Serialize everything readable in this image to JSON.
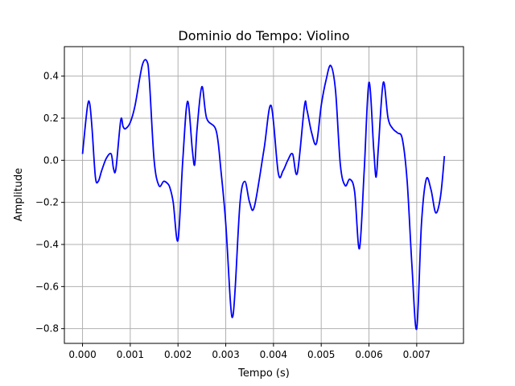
{
  "chart_data": {
    "type": "line",
    "title": "Dominio do Tempo: Violino",
    "xlabel": "Tempo (s)",
    "ylabel": "Amplitude",
    "xlim": [
      -0.00038,
      0.00798
    ],
    "ylim": [
      -0.87,
      0.54
    ],
    "xticks": [
      0.0,
      0.001,
      0.002,
      0.003,
      0.004,
      0.005,
      0.006,
      0.007
    ],
    "xtick_labels": [
      "0.000",
      "0.001",
      "0.002",
      "0.003",
      "0.004",
      "0.005",
      "0.006",
      "0.007"
    ],
    "yticks": [
      -0.8,
      -0.6,
      -0.4,
      -0.2,
      0.0,
      0.2,
      0.4
    ],
    "ytick_labels": [
      "−0.8",
      "−0.6",
      "−0.4",
      "−0.2",
      "0.0",
      "0.2",
      "0.4"
    ],
    "grid": true,
    "line_color": "#0000ff",
    "grid_color": "#b0b0b0",
    "series": [
      {
        "x": [
          0.0,
          0.0001,
          0.00015,
          0.0002,
          0.00027,
          0.00033,
          0.0004,
          0.0005,
          0.0006,
          0.00065,
          0.0007,
          0.0008,
          0.00085,
          0.0009,
          0.001,
          0.0011,
          0.00125,
          0.00135,
          0.0014,
          0.0015,
          0.0016,
          0.0017,
          0.00178,
          0.00183,
          0.0019,
          0.002,
          0.0021,
          0.0022,
          0.0023,
          0.00235,
          0.0024,
          0.0025,
          0.0026,
          0.0028,
          0.0029,
          0.003,
          0.0031,
          0.00315,
          0.0032,
          0.0033,
          0.0034,
          0.0035,
          0.0036,
          0.0038,
          0.00395,
          0.0041,
          0.0042,
          0.0043,
          0.0044,
          0.0045,
          0.00465,
          0.0047,
          0.0048,
          0.0049,
          0.005,
          0.0051,
          0.0052,
          0.0053,
          0.0054,
          0.0055,
          0.0056,
          0.0057,
          0.0058,
          0.0059,
          0.006,
          0.0061,
          0.00615,
          0.0062,
          0.0063,
          0.0064,
          0.0065,
          0.0066,
          0.0067,
          0.0068,
          0.0069,
          0.007,
          0.0071,
          0.0072,
          0.0073,
          0.0074,
          0.0075,
          0.00758
        ],
        "values": [
          0.03,
          0.25,
          0.27,
          0.15,
          -0.08,
          -0.1,
          -0.05,
          0.01,
          0.03,
          -0.04,
          -0.04,
          0.19,
          0.16,
          0.15,
          0.18,
          0.26,
          0.45,
          0.47,
          0.38,
          0.0,
          -0.12,
          -0.1,
          -0.11,
          -0.13,
          -0.2,
          -0.38,
          0.0,
          0.28,
          0.05,
          -0.02,
          0.15,
          0.35,
          0.2,
          0.14,
          -0.05,
          -0.3,
          -0.68,
          -0.74,
          -0.6,
          -0.2,
          -0.1,
          -0.2,
          -0.22,
          0.05,
          0.26,
          -0.06,
          -0.05,
          0.0,
          0.03,
          -0.06,
          0.26,
          0.24,
          0.13,
          0.08,
          0.26,
          0.38,
          0.45,
          0.33,
          -0.02,
          -0.12,
          -0.09,
          -0.15,
          -0.42,
          -0.05,
          0.37,
          0.05,
          -0.08,
          0.07,
          0.37,
          0.2,
          0.15,
          0.13,
          0.1,
          -0.1,
          -0.5,
          -0.8,
          -0.3,
          -0.09,
          -0.14,
          -0.25,
          -0.17,
          0.02
        ]
      }
    ]
  }
}
